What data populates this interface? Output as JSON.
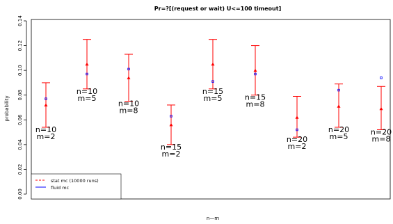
{
  "chart_data": {
    "type": "scatter",
    "title": "Pr=?[(request or wait) U<=100 timeout]",
    "xlabel": "n—m",
    "ylabel": "probability",
    "ylim": [
      0,
      0.14
    ],
    "yticks": [
      "0.00",
      "0.02",
      "0.04",
      "0.06",
      "0.08",
      "0.10",
      "0.12",
      "0.14"
    ],
    "grid": false,
    "legend_position": "bottom-left",
    "legend": [
      {
        "label": "stat mc (10000 runs)",
        "color": "#ff0000",
        "style": "dashed"
      },
      {
        "label": "fluid mc",
        "color": "#0000ff",
        "style": "solid"
      }
    ],
    "categories": [
      {
        "n": "n=10",
        "m": "m=2"
      },
      {
        "n": "n=10",
        "m": "m=5"
      },
      {
        "n": "n=10",
        "m": "m=8"
      },
      {
        "n": "n=15",
        "m": "m=2"
      },
      {
        "n": "n=15",
        "m": "m=5"
      },
      {
        "n": "n=15",
        "m": "m=8"
      },
      {
        "n": "n=20",
        "m": "m=2"
      },
      {
        "n": "n=20",
        "m": "m=5"
      },
      {
        "n": "n=20",
        "m": "m=8"
      }
    ],
    "series": [
      {
        "name": "stat mc (10000 runs)",
        "color": "#ff0000",
        "values": [
          0.072,
          0.105,
          0.094,
          0.056,
          0.105,
          0.1,
          0.062,
          0.071,
          0.069
        ],
        "ci_low": [
          0.054,
          0.085,
          0.075,
          0.04,
          0.085,
          0.08,
          0.046,
          0.054,
          0.052
        ],
        "ci_high": [
          0.09,
          0.125,
          0.113,
          0.072,
          0.125,
          0.12,
          0.079,
          0.089,
          0.087
        ]
      },
      {
        "name": "fluid mc",
        "color": "#0000ff",
        "values": [
          0.077,
          0.097,
          0.101,
          0.063,
          0.091,
          0.097,
          0.052,
          0.084,
          0.094
        ]
      }
    ]
  }
}
